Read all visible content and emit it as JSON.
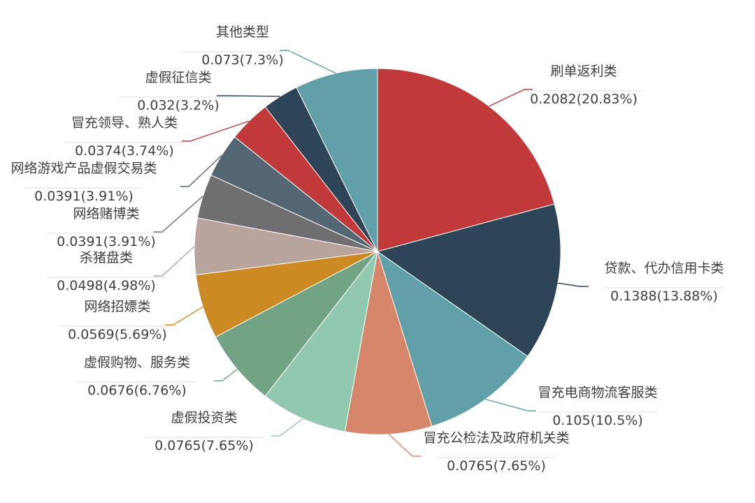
{
  "chart_data": {
    "type": "pie",
    "title": "",
    "slices": [
      {
        "name": "刷单返利类",
        "value": 0.2082,
        "pct": "20.83%",
        "display": "0.2082(20.83%)",
        "color": "#C0393B"
      },
      {
        "name": "贷款、代办信用卡类",
        "value": 0.1388,
        "pct": "13.88%",
        "display": "0.1388(13.88%)",
        "color": "#2E4457"
      },
      {
        "name": "冒充电商物流客服类",
        "value": 0.105,
        "pct": "10.5%",
        "display": "0.105(10.5%)",
        "color": "#61A0A9"
      },
      {
        "name": "冒充公检法及政府机关类",
        "value": 0.0765,
        "pct": "7.65%",
        "display": "0.0765(7.65%)",
        "color": "#D6866A"
      },
      {
        "name": "虚假投资类",
        "value": 0.0765,
        "pct": "7.65%",
        "display": "0.0765(7.65%)",
        "color": "#92C8B0"
      },
      {
        "name": "虚假购物、服务类",
        "value": 0.0676,
        "pct": "6.76%",
        "display": "0.0676(6.76%)",
        "color": "#73A385"
      },
      {
        "name": "网络招嫖类",
        "value": 0.0569,
        "pct": "5.69%",
        "display": "0.0569(5.69%)",
        "color": "#CB8A24"
      },
      {
        "name": "杀猪盘类",
        "value": 0.0498,
        "pct": "4.98%",
        "display": "0.0498(4.98%)",
        "color": "#B9A39D"
      },
      {
        "name": "网络赌博类",
        "value": 0.0391,
        "pct": "3.91%",
        "display": "0.0391(3.91%)",
        "color": "#6F6F72"
      },
      {
        "name": "网络游戏产品虚假交易类",
        "value": 0.0391,
        "pct": "3.91%",
        "display": "0.0391(3.91%)",
        "color": "#546671"
      },
      {
        "name": "冒充领导、熟人类",
        "value": 0.0374,
        "pct": "3.74%",
        "display": "0.0374(3.74%)",
        "color": "#C0393B"
      },
      {
        "name": "虚假征信类",
        "value": 0.032,
        "pct": "3.2%",
        "display": "0.032(3.2%)",
        "color": "#2E4457"
      },
      {
        "name": "其他类型",
        "value": 0.073,
        "pct": "7.3%",
        "display": "0.073(7.3%)",
        "color": "#61A0A9"
      }
    ]
  }
}
